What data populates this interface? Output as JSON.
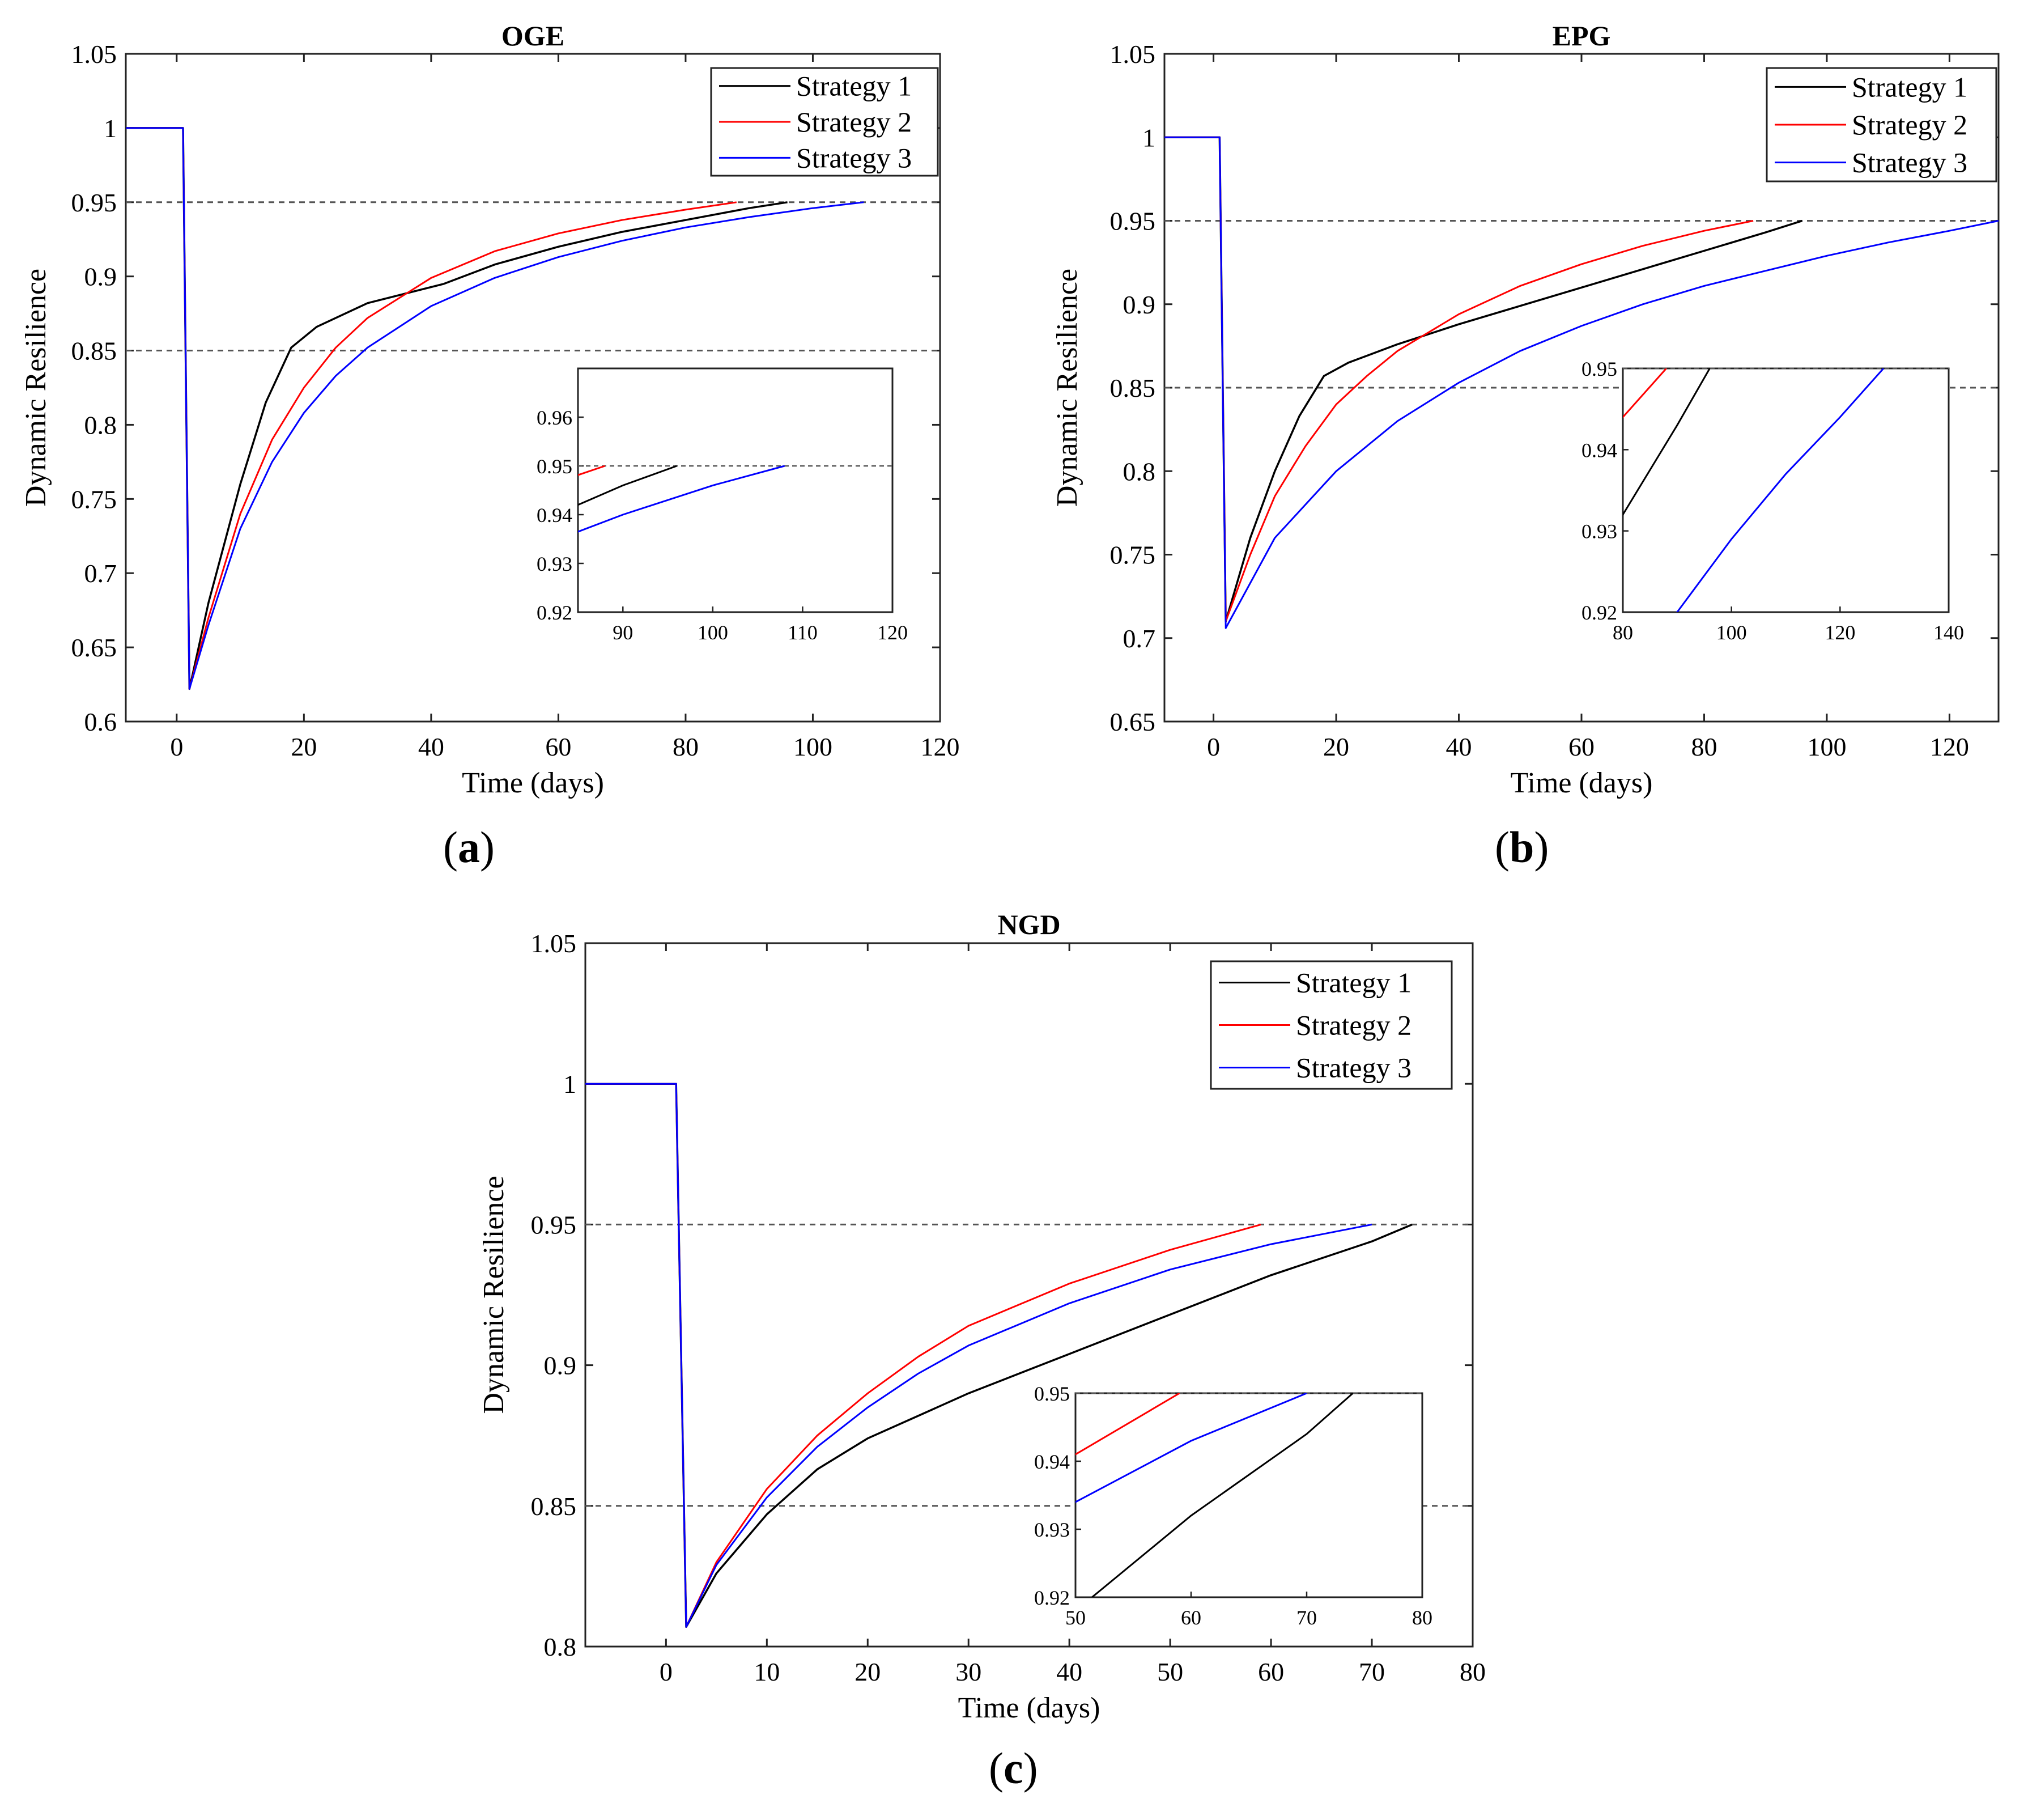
{
  "figure": {
    "panel_labels": [
      "a",
      "b",
      "c"
    ],
    "colors": {
      "strategy1": "#000000",
      "strategy2": "#ff0000",
      "strategy3": "#0000ff",
      "threshold": "#555555"
    }
  },
  "chart_data": [
    {
      "type": "line",
      "title": "OGE",
      "xlabel": "Time (days)",
      "ylabel": "Dynamic Resilience",
      "xlim": [
        -8,
        120
      ],
      "ylim": [
        0.6,
        1.05
      ],
      "xticks": [
        "0",
        "20",
        "40",
        "60",
        "80",
        "100",
        "120"
      ],
      "yticks": [
        "0.6",
        "0.65",
        "0.7",
        "0.75",
        "0.8",
        "0.85",
        "0.9",
        "0.95",
        "1",
        "1.05"
      ],
      "thresholds": [
        0.95,
        0.85
      ],
      "legend": [
        "Strategy 1",
        "Strategy 2",
        "Strategy 3"
      ],
      "legend_position": "top-right",
      "series": [
        {
          "name": "Strategy 1",
          "color": "#000000",
          "points": [
            [
              -8,
              1
            ],
            [
              1,
              1
            ],
            [
              2,
              0.622
            ],
            [
              5,
              0.68
            ],
            [
              10,
              0.76
            ],
            [
              14,
              0.815
            ],
            [
              18,
              0.852
            ],
            [
              22,
              0.866
            ],
            [
              30,
              0.882
            ],
            [
              42,
              0.895
            ],
            [
              50,
              0.908
            ],
            [
              60,
              0.92
            ],
            [
              70,
              0.93
            ],
            [
              80,
              0.938
            ],
            [
              90,
              0.946
            ],
            [
              96,
              0.95
            ]
          ]
        },
        {
          "name": "Strategy 2",
          "color": "#ff0000",
          "points": [
            [
              -8,
              1
            ],
            [
              1,
              1
            ],
            [
              2,
              0.622
            ],
            [
              5,
              0.67
            ],
            [
              10,
              0.74
            ],
            [
              15,
              0.79
            ],
            [
              20,
              0.825
            ],
            [
              25,
              0.852
            ],
            [
              30,
              0.872
            ],
            [
              40,
              0.899
            ],
            [
              50,
              0.917
            ],
            [
              60,
              0.929
            ],
            [
              70,
              0.938
            ],
            [
              80,
              0.945
            ],
            [
              88,
              0.95
            ]
          ]
        },
        {
          "name": "Strategy 3",
          "color": "#0000ff",
          "points": [
            [
              -8,
              1
            ],
            [
              1,
              1
            ],
            [
              2,
              0.622
            ],
            [
              5,
              0.665
            ],
            [
              10,
              0.73
            ],
            [
              15,
              0.775
            ],
            [
              20,
              0.808
            ],
            [
              25,
              0.833
            ],
            [
              30,
              0.852
            ],
            [
              40,
              0.88
            ],
            [
              50,
              0.899
            ],
            [
              60,
              0.913
            ],
            [
              70,
              0.924
            ],
            [
              80,
              0.933
            ],
            [
              90,
              0.94
            ],
            [
              100,
              0.946
            ],
            [
              108,
              0.95
            ]
          ]
        }
      ],
      "inset": {
        "xlim": [
          85,
          120
        ],
        "ylim": [
          0.92,
          0.97
        ],
        "xticks": [
          "90",
          "100",
          "110",
          "120"
        ],
        "yticks": [
          "0.92",
          "0.93",
          "0.94",
          "0.95",
          "0.96"
        ],
        "threshold": 0.95
      }
    },
    {
      "type": "line",
      "title": "EPG",
      "xlabel": "Time (days)",
      "ylabel": "Dynamic Resilience",
      "xlim": [
        -8,
        128
      ],
      "ylim": [
        0.65,
        1.05
      ],
      "xticks": [
        "0",
        "20",
        "40",
        "60",
        "80",
        "100",
        "120"
      ],
      "yticks": [
        "0.65",
        "0.7",
        "0.75",
        "0.8",
        "0.85",
        "0.9",
        "0.95",
        "1",
        "1.05"
      ],
      "thresholds": [
        0.95,
        0.85
      ],
      "legend": [
        "Strategy 1",
        "Strategy 2",
        "Strategy 3"
      ],
      "legend_position": "top-right",
      "series": [
        {
          "name": "Strategy 1",
          "color": "#000000",
          "points": [
            [
              -8,
              1
            ],
            [
              1,
              1
            ],
            [
              2,
              0.71
            ],
            [
              6,
              0.76
            ],
            [
              10,
              0.8
            ],
            [
              14,
              0.833
            ],
            [
              18,
              0.857
            ],
            [
              22,
              0.865
            ],
            [
              30,
              0.876
            ],
            [
              40,
              0.888
            ],
            [
              50,
              0.899
            ],
            [
              60,
              0.91
            ],
            [
              70,
              0.921
            ],
            [
              80,
              0.932
            ],
            [
              90,
              0.943
            ],
            [
              96,
              0.95
            ]
          ]
        },
        {
          "name": "Strategy 2",
          "color": "#ff0000",
          "points": [
            [
              -8,
              1
            ],
            [
              1,
              1
            ],
            [
              2,
              0.71
            ],
            [
              6,
              0.75
            ],
            [
              10,
              0.785
            ],
            [
              15,
              0.815
            ],
            [
              20,
              0.84
            ],
            [
              25,
              0.857
            ],
            [
              30,
              0.872
            ],
            [
              40,
              0.894
            ],
            [
              50,
              0.911
            ],
            [
              60,
              0.924
            ],
            [
              70,
              0.935
            ],
            [
              80,
              0.944
            ],
            [
              88,
              0.95
            ]
          ]
        },
        {
          "name": "Strategy 3",
          "color": "#0000ff",
          "points": [
            [
              -8,
              1
            ],
            [
              1,
              1
            ],
            [
              2,
              0.706
            ],
            [
              10,
              0.76
            ],
            [
              20,
              0.8
            ],
            [
              30,
              0.83
            ],
            [
              40,
              0.853
            ],
            [
              50,
              0.872
            ],
            [
              60,
              0.887
            ],
            [
              70,
              0.9
            ],
            [
              80,
              0.911
            ],
            [
              90,
              0.92
            ],
            [
              100,
              0.929
            ],
            [
              110,
              0.937
            ],
            [
              120,
              0.944
            ],
            [
              128,
              0.95
            ]
          ]
        }
      ],
      "inset": {
        "xlim": [
          80,
          140
        ],
        "ylim": [
          0.92,
          0.95
        ],
        "xticks": [
          "80",
          "100",
          "120",
          "140"
        ],
        "yticks": [
          "0.92",
          "0.93",
          "0.94",
          "0.95"
        ],
        "threshold": 0.95
      }
    },
    {
      "type": "line",
      "title": "NGD",
      "xlabel": "Time (days)",
      "ylabel": "Dynamic Resilience",
      "xlim": [
        -8,
        80
      ],
      "ylim": [
        0.8,
        1.05
      ],
      "xticks": [
        "0",
        "10",
        "20",
        "30",
        "40",
        "50",
        "60",
        "70",
        "80"
      ],
      "yticks": [
        "0.8",
        "0.85",
        "0.9",
        "0.95",
        "1",
        "1.05"
      ],
      "thresholds": [
        0.95,
        0.85
      ],
      "legend": [
        "Strategy 1",
        "Strategy 2",
        "Strategy 3"
      ],
      "legend_position": "top-right",
      "series": [
        {
          "name": "Strategy 1",
          "color": "#000000",
          "points": [
            [
              -8,
              1
            ],
            [
              1,
              1
            ],
            [
              2,
              0.807
            ],
            [
              5,
              0.826
            ],
            [
              10,
              0.847
            ],
            [
              15,
              0.863
            ],
            [
              20,
              0.874
            ],
            [
              25,
              0.882
            ],
            [
              30,
              0.89
            ],
            [
              40,
              0.904
            ],
            [
              50,
              0.918
            ],
            [
              60,
              0.932
            ],
            [
              70,
              0.944
            ],
            [
              74,
              0.95
            ]
          ]
        },
        {
          "name": "Strategy 2",
          "color": "#ff0000",
          "points": [
            [
              -8,
              1
            ],
            [
              1,
              1
            ],
            [
              2,
              0.807
            ],
            [
              5,
              0.83
            ],
            [
              10,
              0.856
            ],
            [
              15,
              0.875
            ],
            [
              20,
              0.89
            ],
            [
              25,
              0.903
            ],
            [
              30,
              0.914
            ],
            [
              40,
              0.929
            ],
            [
              50,
              0.941
            ],
            [
              59,
              0.95
            ]
          ]
        },
        {
          "name": "Strategy 3",
          "color": "#0000ff",
          "points": [
            [
              -8,
              1
            ],
            [
              1,
              1
            ],
            [
              2,
              0.807
            ],
            [
              5,
              0.829
            ],
            [
              10,
              0.853
            ],
            [
              15,
              0.871
            ],
            [
              20,
              0.885
            ],
            [
              25,
              0.897
            ],
            [
              30,
              0.907
            ],
            [
              40,
              0.922
            ],
            [
              50,
              0.934
            ],
            [
              60,
              0.943
            ],
            [
              70,
              0.95
            ]
          ]
        }
      ],
      "inset": {
        "xlim": [
          50,
          80
        ],
        "ylim": [
          0.92,
          0.95
        ],
        "xticks": [
          "50",
          "60",
          "70",
          "80"
        ],
        "yticks": [
          "0.92",
          "0.93",
          "0.94",
          "0.95"
        ],
        "threshold": 0.95
      }
    }
  ]
}
